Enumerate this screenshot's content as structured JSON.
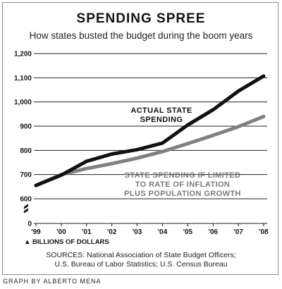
{
  "title": "SPENDING SPREE",
  "subtitle": "How states busted the budget during the boom years",
  "units_label": "▲ BILLIONS OF DOLLARS",
  "sources_line1": "SOURCES: National Association of State Budget Officers;",
  "sources_line2": "U.S. Bureau of Labor Statistics; U.S. Census Bureau",
  "credit": "GRAPH BY ALBERTO MENA",
  "colors": {
    "actual": "#111111",
    "limited": "#808080",
    "grid": "#222222"
  },
  "chart_data": {
    "type": "line",
    "x": [
      "'99",
      "'00",
      "'01",
      "'02",
      "'03",
      "'04",
      "'05",
      "'06",
      "'07",
      "'08"
    ],
    "y_ticks": [
      "1,200",
      "1,100",
      "1,000",
      "900",
      "800",
      "700",
      "600",
      "0"
    ],
    "y_tick_values": [
      1200,
      1100,
      1000,
      900,
      800,
      700,
      600,
      0
    ],
    "axis_break": true,
    "ylim": [
      600,
      1200
    ],
    "grid": "horizontal",
    "series": [
      {
        "id": "actual",
        "label_lines": [
          "ACTUAL STATE",
          "SPENDING"
        ],
        "values": [
          655,
          698,
          755,
          785,
          803,
          830,
          905,
          968,
          1045,
          1107
        ]
      },
      {
        "id": "limited",
        "label_lines": [
          "STATE SPENDING IF LIMITED",
          "TO RATE OF INFLATION",
          "PLUS POPULATION GROWTH"
        ],
        "values": [
          655,
          700,
          725,
          745,
          768,
          795,
          828,
          862,
          898,
          940
        ]
      }
    ]
  }
}
